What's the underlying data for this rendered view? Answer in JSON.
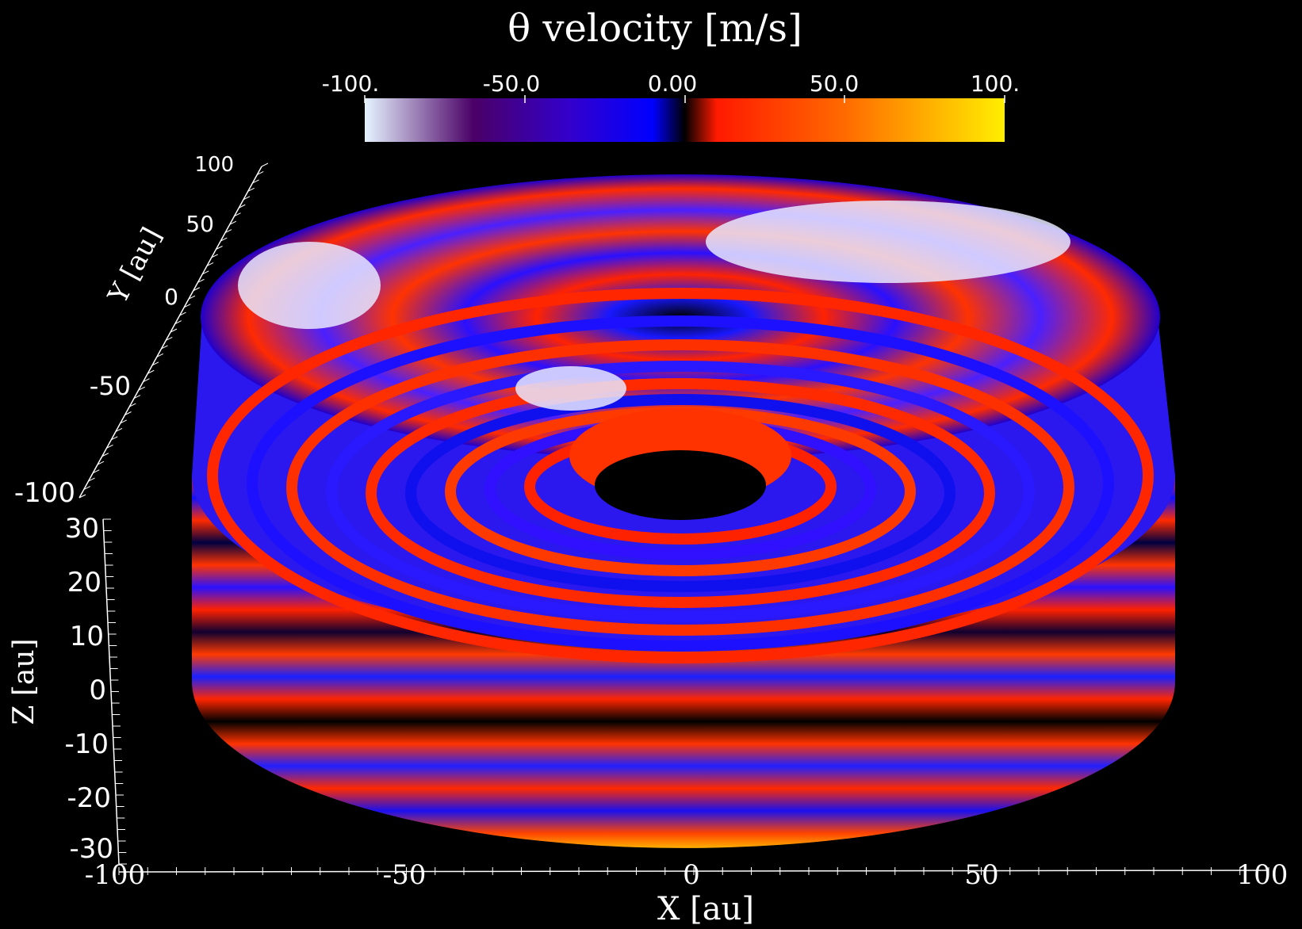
{
  "colorbar": {
    "title": "θ  velocity [m/s]",
    "tick_labels": [
      "-100.",
      "-50.0",
      "0.00",
      "50.0",
      "100."
    ],
    "range": [
      -100,
      100
    ],
    "colors": [
      "#e6f4ff",
      "#4a0066",
      "#3300cc",
      "#0000ff",
      "#000000",
      "#ff1a00",
      "#ff6a00",
      "#ffe600"
    ]
  },
  "axes": {
    "x": {
      "label": "X [au]",
      "ticks": [
        "-100",
        "-50",
        "0",
        "50",
        "100"
      ]
    },
    "y": {
      "label": "Y [au]",
      "ticks": [
        "100",
        "50",
        "0",
        "-50",
        "-100"
      ]
    },
    "z": {
      "label": "Z [au]",
      "ticks": [
        "30",
        "20",
        "10",
        "0",
        "-10",
        "-20",
        "-30"
      ]
    }
  }
}
